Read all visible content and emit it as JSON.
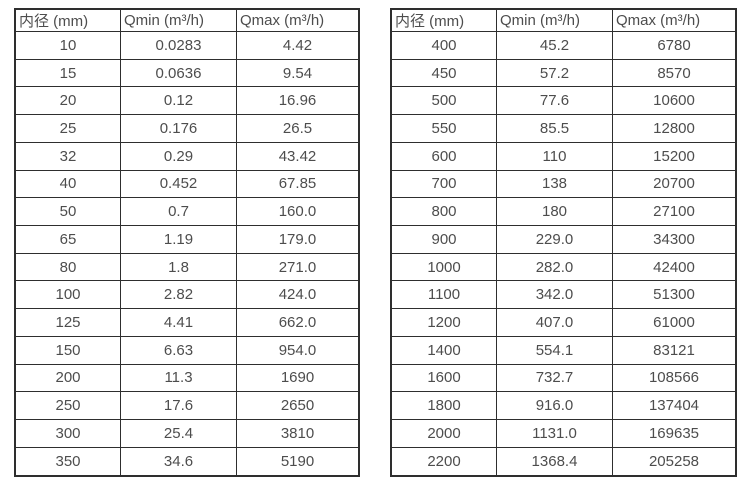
{
  "chart_data": [
    {
      "type": "table",
      "title": "",
      "columns": [
        "内径 (mm)",
        "Qmin (m³/h)",
        "Qmax (m³/h)"
      ],
      "rows": [
        [
          "10",
          "0.0283",
          "4.42"
        ],
        [
          "15",
          "0.0636",
          "9.54"
        ],
        [
          "20",
          "0.12",
          "16.96"
        ],
        [
          "25",
          "0.176",
          "26.5"
        ],
        [
          "32",
          "0.29",
          "43.42"
        ],
        [
          "40",
          "0.452",
          "67.85"
        ],
        [
          "50",
          "0.7",
          "160.0"
        ],
        [
          "65",
          "1.19",
          "179.0"
        ],
        [
          "80",
          "1.8",
          "271.0"
        ],
        [
          "100",
          "2.82",
          "424.0"
        ],
        [
          "125",
          "4.41",
          "662.0"
        ],
        [
          "150",
          "6.63",
          "954.0"
        ],
        [
          "200",
          "11.3",
          "1690"
        ],
        [
          "250",
          "17.6",
          "2650"
        ],
        [
          "300",
          "25.4",
          "3810"
        ],
        [
          "350",
          "34.6",
          "5190"
        ]
      ]
    },
    {
      "type": "table",
      "title": "",
      "columns": [
        "内径 (mm)",
        "Qmin (m³/h)",
        "Qmax (m³/h)"
      ],
      "rows": [
        [
          "400",
          "45.2",
          "6780"
        ],
        [
          "450",
          "57.2",
          "8570"
        ],
        [
          "500",
          "77.6",
          "10600"
        ],
        [
          "550",
          "85.5",
          "12800"
        ],
        [
          "600",
          "110",
          "15200"
        ],
        [
          "700",
          "138",
          "20700"
        ],
        [
          "800",
          "180",
          "27100"
        ],
        [
          "900",
          "229.0",
          "34300"
        ],
        [
          "1000",
          "282.0",
          "42400"
        ],
        [
          "1100",
          "342.0",
          "51300"
        ],
        [
          "1200",
          "407.0",
          "61000"
        ],
        [
          "1400",
          "554.1",
          "83121"
        ],
        [
          "1600",
          "732.7",
          "108566"
        ],
        [
          "1800",
          "916.0",
          "137404"
        ],
        [
          "2000",
          "1131.0",
          "169635"
        ],
        [
          "2200",
          "1368.4",
          "205258"
        ]
      ]
    }
  ],
  "colors": {
    "text": "#4d4d4d",
    "border": "#2e2e2e",
    "background": "#ffffff"
  }
}
